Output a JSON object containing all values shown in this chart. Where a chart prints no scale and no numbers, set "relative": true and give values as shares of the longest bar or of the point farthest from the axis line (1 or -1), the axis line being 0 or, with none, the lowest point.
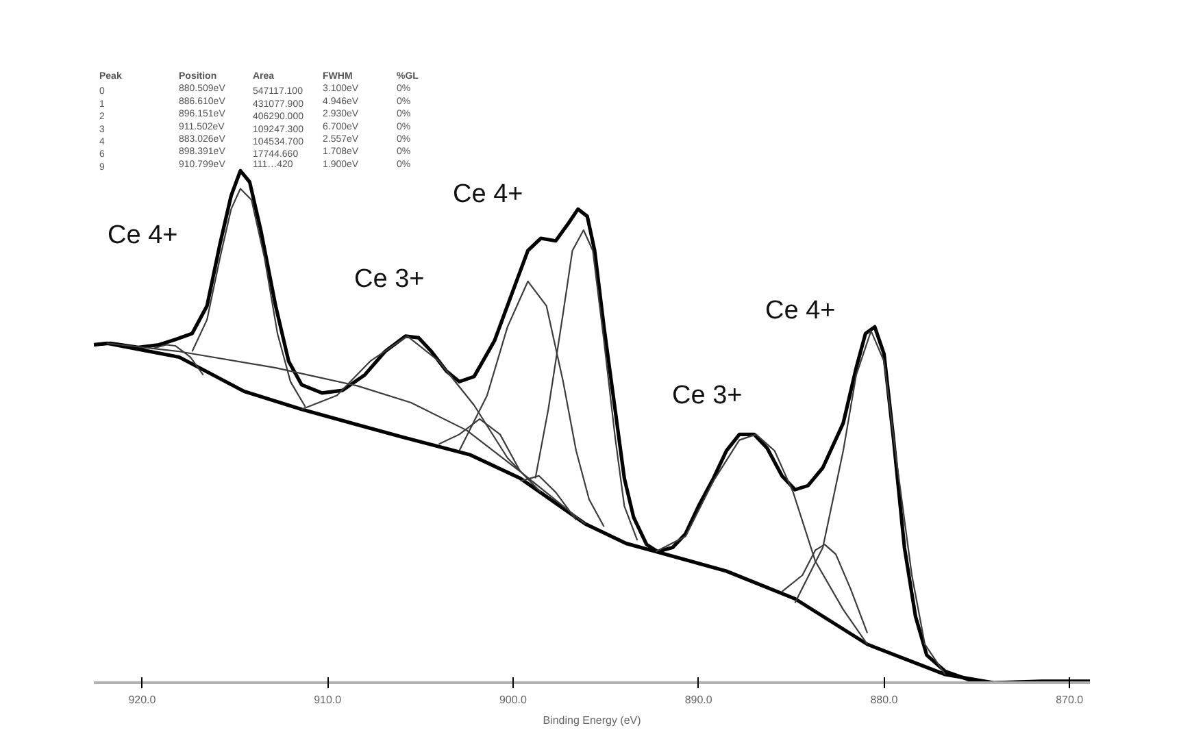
{
  "chart_data": {
    "type": "line",
    "relative": true,
    "xlabel": "Binding Energy (eV)",
    "xlim": [
      922.6,
      868.9
    ],
    "xticks": [
      {
        "value": 920,
        "label": "920.0"
      },
      {
        "value": 910,
        "label": "910.0"
      },
      {
        "value": 900,
        "label": "900.0"
      },
      {
        "value": 890,
        "label": "890.0"
      },
      {
        "value": 880,
        "label": "880.0"
      },
      {
        "value": 870,
        "label": "870.0"
      }
    ],
    "grid": false,
    "marker": "none",
    "line_style": "solid",
    "annotations": [
      "Peak   Position    Area        FWHM      %GL",
      "0      880.509eV   547117.100  3.100eV   0%",
      "1      886.610eV   431077.900  4.946eV   0%",
      "2      896.151eV   406290.000  2.930eV   0%",
      "3      911.502eV   109247.300  6.700eV   0%",
      "4      883.026eV   104534.700  2.557eV   0%",
      "6      898.391eV   17744.660   1.708eV   0%",
      "9      910.799eV   111…420     1.900eV   0%",
      "Ce 4+",
      "Ce 3+",
      "Ce 4+",
      "Ce 3+",
      "Ce 4+"
    ],
    "series": [
      {
        "color": "#000000",
        "x": [
          922.6,
          921.7,
          920.2,
          919.1,
          918.4,
          917.3,
          916.5,
          915.8,
          915.2,
          914.7,
          914.2,
          913.6,
          912.8,
          912.1,
          911.4,
          910.3,
          909.2,
          908.0,
          906.9,
          905.8,
          905.1,
          904.4,
          903.6,
          902.9,
          902.1,
          901.0,
          899.9,
          899.2,
          898.5,
          897.7,
          897.0,
          896.5,
          896.0,
          895.6,
          895.1,
          894.5,
          894.0,
          893.5,
          892.8,
          892.2,
          891.4,
          890.7,
          890.0,
          889.2,
          888.5,
          887.8,
          887.0,
          886.3,
          885.5,
          884.8,
          884.1,
          883.3,
          882.2,
          881.5,
          881.0,
          880.5,
          880.0,
          879.5,
          878.9,
          878.3,
          877.7,
          876.7,
          875.2,
          874.1,
          871.5,
          868.9
        ],
        "values": [
          0.66,
          0.663,
          0.655,
          0.66,
          0.668,
          0.682,
          0.736,
          0.857,
          0.951,
          1.0,
          0.978,
          0.884,
          0.736,
          0.628,
          0.582,
          0.566,
          0.571,
          0.601,
          0.647,
          0.677,
          0.674,
          0.647,
          0.609,
          0.588,
          0.598,
          0.668,
          0.776,
          0.844,
          0.868,
          0.863,
          0.898,
          0.925,
          0.911,
          0.844,
          0.695,
          0.534,
          0.399,
          0.323,
          0.27,
          0.256,
          0.264,
          0.291,
          0.345,
          0.399,
          0.453,
          0.485,
          0.485,
          0.458,
          0.404,
          0.377,
          0.385,
          0.42,
          0.507,
          0.615,
          0.682,
          0.695,
          0.642,
          0.48,
          0.264,
          0.129,
          0.054,
          0.022,
          0.003,
          0.0,
          0.003,
          0.003
        ]
      },
      {
        "color": "#000000",
        "x": [
          922.6,
          921.9,
          918.0,
          914.5,
          911.4,
          906.0,
          902.3,
          899.6,
          896.1,
          893.9,
          892.3,
          888.5,
          884.8,
          880.9,
          876.7,
          874.1
        ],
        "values": [
          0.66,
          0.663,
          0.636,
          0.569,
          0.534,
          0.48,
          0.445,
          0.399,
          0.31,
          0.272,
          0.256,
          0.218,
          0.164,
          0.075,
          0.016,
          0.0
        ]
      },
      {
        "color": "#3c3c3c",
        "x": [
          917.3,
          916.5,
          915.8,
          915.2,
          914.7,
          914.1,
          913.4,
          912.7,
          912.0,
          911.2
        ],
        "values": [
          0.647,
          0.709,
          0.83,
          0.925,
          0.965,
          0.943,
          0.83,
          0.682,
          0.588,
          0.539
        ]
      },
      {
        "color": "#3c3c3c",
        "x": [
          919.5,
          918.7,
          918.2,
          917.4,
          916.7
        ],
        "values": [
          0.652,
          0.66,
          0.658,
          0.636,
          0.601
        ]
      },
      {
        "color": "#3c3c3c",
        "x": [
          921.9,
          918.0,
          912.8,
          908.4,
          905.5,
          902.5,
          899.6,
          896.1
        ],
        "values": [
          0.663,
          0.647,
          0.615,
          0.58,
          0.547,
          0.493,
          0.412,
          0.31
        ]
      },
      {
        "color": "#3c3c3c",
        "x": [
          911.4,
          909.5,
          907.7,
          905.7,
          904.0,
          902.1,
          900.3,
          898.5
        ],
        "values": [
          0.534,
          0.561,
          0.628,
          0.677,
          0.628,
          0.542,
          0.439,
          0.372
        ]
      },
      {
        "color": "#3c3c3c",
        "x": [
          904.0,
          902.9,
          901.8,
          900.7,
          899.6
        ],
        "values": [
          0.466,
          0.485,
          0.515,
          0.485,
          0.412
        ]
      },
      {
        "color": "#3c3c3c",
        "x": [
          902.9,
          901.4,
          900.3,
          899.2,
          898.2,
          897.3,
          896.6,
          895.9,
          895.1
        ],
        "values": [
          0.453,
          0.561,
          0.695,
          0.784,
          0.736,
          0.588,
          0.453,
          0.358,
          0.305
        ]
      },
      {
        "color": "#3c3c3c",
        "x": [
          898.8,
          898.1,
          897.3,
          896.8,
          896.2,
          895.7,
          895.1,
          894.5,
          894.0,
          893.3
        ],
        "values": [
          0.399,
          0.534,
          0.722,
          0.844,
          0.884,
          0.844,
          0.668,
          0.48,
          0.345,
          0.278
        ]
      },
      {
        "color": "#3c3c3c",
        "x": [
          899.6,
          898.6,
          897.7,
          896.6
        ],
        "values": [
          0.394,
          0.404,
          0.372,
          0.318
        ]
      },
      {
        "color": "#3c3c3c",
        "x": [
          892.3,
          890.7,
          889.2,
          887.8,
          886.9,
          885.9,
          884.9,
          883.7,
          882.2,
          880.9
        ],
        "values": [
          0.256,
          0.286,
          0.394,
          0.474,
          0.485,
          0.453,
          0.372,
          0.237,
          0.143,
          0.075
        ]
      },
      {
        "color": "#3c3c3c",
        "x": [
          885.5,
          884.4,
          883.7,
          883.2,
          882.6,
          881.8,
          880.9
        ],
        "values": [
          0.178,
          0.21,
          0.259,
          0.27,
          0.251,
          0.183,
          0.097
        ]
      },
      {
        "color": "#3c3c3c",
        "x": [
          884.8,
          883.3,
          882.2,
          881.5,
          880.7,
          880.0,
          879.3,
          878.5,
          877.8,
          876.7
        ],
        "values": [
          0.156,
          0.264,
          0.453,
          0.601,
          0.687,
          0.628,
          0.426,
          0.21,
          0.075,
          0.016
        ]
      }
    ]
  }
}
